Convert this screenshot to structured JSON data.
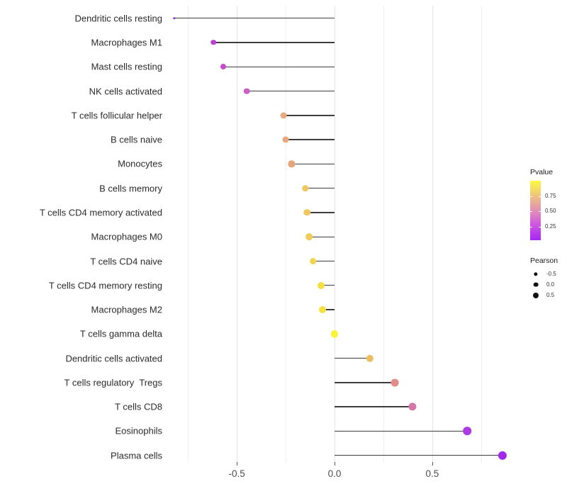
{
  "chart_data": {
    "type": "scatter",
    "variant": "lollipop",
    "title": "",
    "xlabel": "",
    "ylabel": "",
    "x_axis": {
      "range": [
        -0.86,
        0.94
      ],
      "major_ticks": [
        -0.5,
        0.0,
        0.5
      ],
      "major_tick_labels": [
        "-0.5",
        "0.0",
        "0.5"
      ],
      "minor_gridlines": [
        -0.75,
        -0.25,
        0.25,
        0.75
      ],
      "grid": "vertical-only"
    },
    "points": [
      {
        "label": "Dendritic cells resting",
        "pearson": -0.82,
        "pvalue_est": 0.05,
        "color": "#9130D9",
        "size": 3.5
      },
      {
        "label": "Macrophages M1",
        "pearson": -0.62,
        "pvalue_est": 0.15,
        "color": "#BA3FD3",
        "size": 7.5
      },
      {
        "label": "Mast cells resting",
        "pearson": -0.57,
        "pvalue_est": 0.19,
        "color": "#C54DCD",
        "size": 8
      },
      {
        "label": "NK cells activated",
        "pearson": -0.45,
        "pvalue_est": 0.23,
        "color": "#CC5FC5",
        "size": 8.6
      },
      {
        "label": "T cells follicular helper",
        "pearson": -0.26,
        "pvalue_est": 0.6,
        "color": "#E9A87E",
        "size": 9
      },
      {
        "label": "B cells naive",
        "pearson": -0.25,
        "pvalue_est": 0.6,
        "color": "#E9A87C",
        "size": 9
      },
      {
        "label": "Monocytes",
        "pearson": -0.22,
        "pvalue_est": 0.58,
        "color": "#E7A475",
        "size": 9.2
      },
      {
        "label": "B cells memory",
        "pearson": -0.15,
        "pvalue_est": 0.72,
        "color": "#EFC75E",
        "size": 9.4
      },
      {
        "label": "T cells CD4 memory activated",
        "pearson": -0.14,
        "pvalue_est": 0.72,
        "color": "#EFC75C",
        "size": 9.5
      },
      {
        "label": "Macrophages M0",
        "pearson": -0.13,
        "pvalue_est": 0.74,
        "color": "#F0CB56",
        "size": 9.6
      },
      {
        "label": "T cells CD4 naive",
        "pearson": -0.11,
        "pvalue_est": 0.78,
        "color": "#F2D44E",
        "size": 9.7
      },
      {
        "label": "T cells CD4 memory resting",
        "pearson": -0.07,
        "pvalue_est": 0.84,
        "color": "#F5DF42",
        "size": 9.9
      },
      {
        "label": "Macrophages M2",
        "pearson": -0.06,
        "pvalue_est": 0.86,
        "color": "#F6E23E",
        "size": 10
      },
      {
        "label": "T cells gamma delta",
        "pearson": 0.0,
        "pvalue_est": 0.97,
        "color": "#FAF23C",
        "size": 10.2
      },
      {
        "label": "Dendritic cells activated",
        "pearson": 0.18,
        "pvalue_est": 0.68,
        "color": "#ECBE61",
        "size": 10.4
      },
      {
        "label": "T cells regulatory  Tregs",
        "pearson": 0.31,
        "pvalue_est": 0.47,
        "color": "#E18E88",
        "size": 10.8
      },
      {
        "label": "T cells CD8",
        "pearson": 0.4,
        "pvalue_est": 0.37,
        "color": "#D577A9",
        "size": 11.2
      },
      {
        "label": "Eosinophils",
        "pearson": 0.68,
        "pvalue_est": 0.12,
        "color": "#AC3AE3",
        "size": 11.6
      },
      {
        "label": "Plasma cells",
        "pearson": 0.86,
        "pvalue_est": 0.06,
        "color": "#A228EC",
        "size": 12.2
      }
    ],
    "legend": {
      "pvalue": {
        "title": "Pvalue",
        "tick_labels": [
          "0.75",
          "0.50",
          "0.25"
        ],
        "tick_values": [
          0.75,
          0.5,
          0.25
        ],
        "bar_range": [
          0.03,
          1.0
        ],
        "gradient_top_to_bottom": [
          "#FCFB3F",
          "#F5DB63",
          "#EEBC85",
          "#E59FA6",
          "#DD80C4",
          "#D05BDD",
          "#BC3FEA",
          "#A428F2"
        ]
      },
      "pearson": {
        "title": "Pearson",
        "entries": [
          {
            "label": "-0.5",
            "size": 5.3
          },
          {
            "label": "0.0",
            "size": 6.7
          },
          {
            "label": "0.5",
            "size": 8
          }
        ],
        "dot_color": "#111111"
      }
    },
    "colors": {
      "background": "#ffffff",
      "segment": "#3d3d3d",
      "gridline_minor": "#efefef",
      "gridline_major": "#e4e4e4",
      "x_tick_text": "#4d4d4d",
      "y_label_text": "#2b2b2b"
    }
  }
}
